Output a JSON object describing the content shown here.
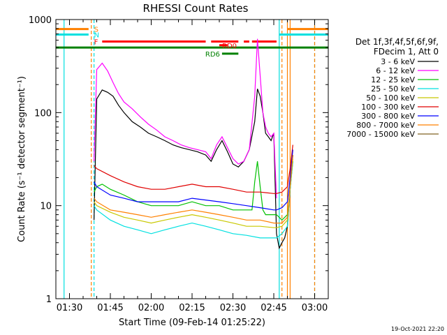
{
  "chart_data": {
    "type": "line",
    "title": "RHESSI Count Rates",
    "xlabel": "Start Time (09-Feb-14 01:25:22)",
    "ylabel": "Count Rate (s⁻¹ detector segment⁻¹)",
    "xlim": [
      "01:25",
      "03:05"
    ],
    "ylim": [
      1,
      1000
    ],
    "yscale": "log",
    "x_ticks": [
      "01:30",
      "01:45",
      "02:00",
      "02:15",
      "02:30",
      "02:45",
      "03:00"
    ],
    "y_ticks": [
      "1",
      "10",
      "100",
      "1000"
    ],
    "legend_header": [
      "Det 1f,3f,4f,5f,6f,9f,",
      "FDecim 1, Att 0"
    ],
    "legend_placement": "right",
    "series": [
      {
        "name": "3 - 6 keV",
        "color": "#000000",
        "x": [
          "01:39",
          "01:40",
          "01:42",
          "01:44",
          "01:46",
          "01:48",
          "01:50",
          "01:53",
          "01:56",
          "01:59",
          "02:02",
          "02:05",
          "02:08",
          "02:11",
          "02:14",
          "02:17",
          "02:20",
          "02:22",
          "02:24",
          "02:26",
          "02:28",
          "02:30",
          "02:32",
          "02:34",
          "02:36",
          "02:38",
          "02:39",
          "02:40",
          "02:41",
          "02:42",
          "02:43",
          "02:44",
          "02:45",
          "02:46",
          "02:47",
          "02:48",
          "02:49",
          "02:50",
          "02:51",
          "02:52"
        ],
        "values": [
          7,
          140,
          175,
          165,
          150,
          120,
          100,
          80,
          70,
          60,
          55,
          50,
          45,
          42,
          40,
          38,
          35,
          30,
          40,
          50,
          38,
          28,
          26,
          30,
          40,
          80,
          180,
          150,
          100,
          60,
          55,
          50,
          60,
          5,
          3.5,
          4,
          4.5,
          6,
          15,
          35
        ]
      },
      {
        "name": "6 - 12 keV",
        "color": "#ff00ff",
        "x": [
          "01:39",
          "01:40",
          "01:42",
          "01:44",
          "01:46",
          "01:48",
          "01:50",
          "01:53",
          "01:56",
          "01:59",
          "02:02",
          "02:05",
          "02:08",
          "02:11",
          "02:14",
          "02:17",
          "02:20",
          "02:22",
          "02:24",
          "02:26",
          "02:28",
          "02:30",
          "02:32",
          "02:34",
          "02:36",
          "02:38",
          "02:39",
          "02:40",
          "02:41",
          "02:42",
          "02:43",
          "02:44",
          "02:45",
          "02:46"
        ],
        "values": [
          30,
          290,
          340,
          280,
          210,
          160,
          130,
          110,
          90,
          75,
          65,
          55,
          50,
          45,
          42,
          40,
          38,
          32,
          45,
          55,
          42,
          32,
          28,
          30,
          40,
          150,
          620,
          250,
          100,
          70,
          60,
          55,
          60,
          12
        ]
      },
      {
        "name": "12 - 25 keV",
        "color": "#00c000",
        "x": [
          "01:39",
          "01:40",
          "01:42",
          "01:45",
          "01:50",
          "01:55",
          "02:00",
          "02:05",
          "02:10",
          "02:15",
          "02:20",
          "02:25",
          "02:30",
          "02:35",
          "02:37",
          "02:38",
          "02:39",
          "02:40",
          "02:41",
          "02:42",
          "02:44",
          "02:45",
          "02:46",
          "02:48",
          "02:50",
          "02:51",
          "02:52"
        ],
        "values": [
          14,
          16,
          17,
          15,
          13,
          11,
          10,
          10,
          10,
          11,
          10,
          10,
          9,
          9,
          9,
          18,
          30,
          16,
          9,
          8,
          8,
          8,
          8,
          7,
          8,
          15,
          30
        ]
      },
      {
        "name": "25 - 50 keV",
        "color": "#00e0e0",
        "x": [
          "01:39",
          "01:40",
          "01:45",
          "01:50",
          "01:55",
          "02:00",
          "02:05",
          "02:10",
          "02:15",
          "02:20",
          "02:25",
          "02:30",
          "02:35",
          "02:40",
          "02:45",
          "02:46",
          "02:48",
          "02:50",
          "02:51",
          "02:52"
        ],
        "values": [
          10,
          9,
          7,
          6,
          5.5,
          5,
          5.5,
          6,
          6.5,
          6,
          5.5,
          5,
          4.8,
          4.5,
          4.5,
          4.5,
          5,
          6,
          15,
          30
        ]
      },
      {
        "name": "50 - 100 keV",
        "color": "#c8c800",
        "x": [
          "01:39",
          "01:40",
          "01:45",
          "01:50",
          "01:55",
          "02:00",
          "02:05",
          "02:10",
          "02:15",
          "02:20",
          "02:25",
          "02:30",
          "02:35",
          "02:40",
          "02:45",
          "02:46",
          "02:48",
          "02:50",
          "02:51",
          "02:52"
        ],
        "values": [
          11,
          10,
          8.5,
          7.5,
          7,
          6.5,
          7,
          7.5,
          8,
          7.5,
          7,
          6.5,
          6,
          6,
          5.8,
          5.8,
          6,
          7,
          16,
          32
        ]
      },
      {
        "name": "100 - 300 keV",
        "color": "#e00000",
        "x": [
          "01:39",
          "01:40",
          "01:45",
          "01:50",
          "01:55",
          "02:00",
          "02:05",
          "02:10",
          "02:15",
          "02:20",
          "02:25",
          "02:30",
          "02:35",
          "02:40",
          "02:45",
          "02:46",
          "02:48",
          "02:50",
          "02:51",
          "02:52"
        ],
        "values": [
          27,
          25,
          21,
          18,
          16,
          15,
          15,
          16,
          17,
          16,
          16,
          15,
          14,
          14,
          13.5,
          13.5,
          14,
          16,
          25,
          45
        ]
      },
      {
        "name": "300 - 800 keV",
        "color": "#0000ff",
        "x": [
          "01:39",
          "01:40",
          "01:45",
          "01:50",
          "01:55",
          "02:00",
          "02:05",
          "02:10",
          "02:15",
          "02:20",
          "02:25",
          "02:30",
          "02:35",
          "02:40",
          "02:45",
          "02:46",
          "02:48",
          "02:50",
          "02:51",
          "02:52"
        ],
        "values": [
          18,
          16,
          13,
          12,
          11,
          11,
          11,
          11,
          12,
          11.5,
          11,
          10.5,
          10,
          9.5,
          9,
          9,
          9.5,
          11,
          20,
          40
        ]
      },
      {
        "name": "800 - 7000 keV",
        "color": "#ff8000",
        "x": [
          "01:39",
          "01:40",
          "01:45",
          "01:50",
          "01:55",
          "02:00",
          "02:05",
          "02:10",
          "02:15",
          "02:20",
          "02:25",
          "02:30",
          "02:35",
          "02:40",
          "02:45",
          "02:46",
          "02:48",
          "02:50",
          "02:51",
          "02:52"
        ],
        "values": [
          12,
          11,
          9,
          8.5,
          8,
          7.5,
          8,
          8.5,
          9,
          8.5,
          8,
          7.5,
          7,
          7,
          6.5,
          6.5,
          6.5,
          7.5,
          16,
          35
        ]
      },
      {
        "name": "7000 - 15000 keV",
        "color": "#806020",
        "x": [],
        "values": []
      }
    ],
    "vertical_lines": [
      {
        "x": "01:28",
        "color": "#00e0e0",
        "style": "solid"
      },
      {
        "x": "01:38",
        "color": "#ff8000",
        "style": "dashed"
      },
      {
        "x": "01:39",
        "color": "#00e0e0",
        "style": "dashed"
      },
      {
        "x": "02:47",
        "color": "#00e0e0",
        "style": "solid"
      },
      {
        "x": "02:48",
        "color": "#ff8000",
        "style": "dashed"
      },
      {
        "x": "02:50",
        "color": "#ff8000",
        "style": "solid"
      },
      {
        "x": "02:51",
        "color": "#ff8000",
        "style": "solid"
      },
      {
        "x": "03:00",
        "color": "#00e0e0",
        "style": "dashed"
      },
      {
        "x": "03:00",
        "color": "#ff8000",
        "style": "dashed"
      }
    ],
    "flag_bars": [
      {
        "label": "S",
        "color": "#ff8000",
        "level": 790,
        "segments": [
          [
            "01:25",
            "01:37"
          ],
          [
            "02:50",
            "03:05"
          ]
        ]
      },
      {
        "label": "N",
        "color": "#00e0e0",
        "level": 690,
        "segments": [
          [
            "01:25",
            "01:37"
          ],
          [
            "02:47",
            "03:05"
          ]
        ]
      },
      {
        "label": "F",
        "color": "#ff0000",
        "level": 580,
        "segments": [
          [
            "01:42",
            "02:20"
          ],
          [
            "02:22",
            "02:32"
          ],
          [
            "02:34",
            "02:36"
          ],
          [
            "02:37",
            "02:46"
          ]
        ]
      },
      {
        "label": "",
        "color": "#008000",
        "level": 500,
        "segments": [
          [
            "01:25",
            "03:05"
          ]
        ]
      },
      {
        "label": "RD6",
        "color": "#008000",
        "level": 430,
        "segments": [
          [
            "02:26",
            "02:32"
          ]
        ]
      },
      {
        "label": "RD0",
        "color": "#ff0000",
        "level": 530,
        "segments": [
          [
            "02:25",
            "02:28"
          ]
        ]
      }
    ],
    "timestamp": "19-Oct-2021 22:20"
  }
}
